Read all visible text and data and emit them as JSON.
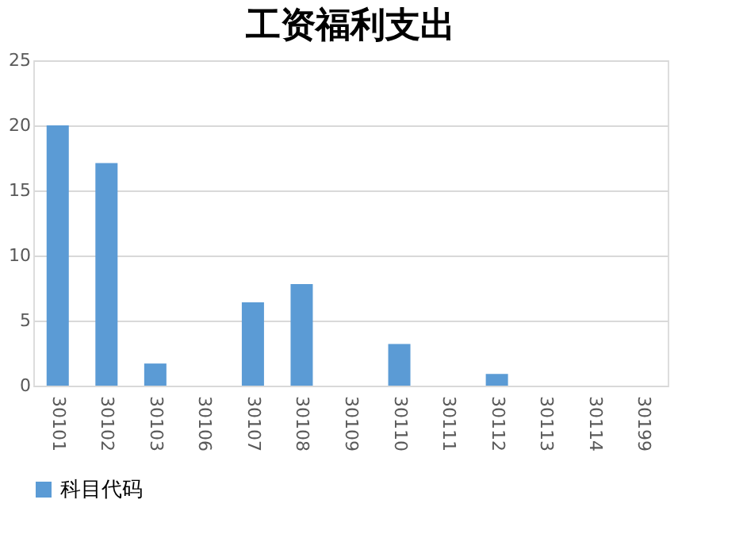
{
  "chart_data": {
    "type": "bar",
    "title": "工资福利支出",
    "categories": [
      "30101",
      "30102",
      "30103",
      "30106",
      "30107",
      "30108",
      "30109",
      "30110",
      "30111",
      "30112",
      "30113",
      "30114",
      "30199"
    ],
    "series": [
      {
        "name": "科目代码",
        "color": "#5b9bd5",
        "values": [
          20,
          17.1,
          1.7,
          0,
          6.4,
          7.8,
          0,
          3.2,
          0,
          0.9,
          0,
          0,
          0
        ]
      }
    ],
    "ylim": [
      0,
      25
    ],
    "yticks": [
      0,
      5,
      10,
      15,
      20,
      25
    ],
    "grid": "y",
    "legend": "bottom"
  }
}
